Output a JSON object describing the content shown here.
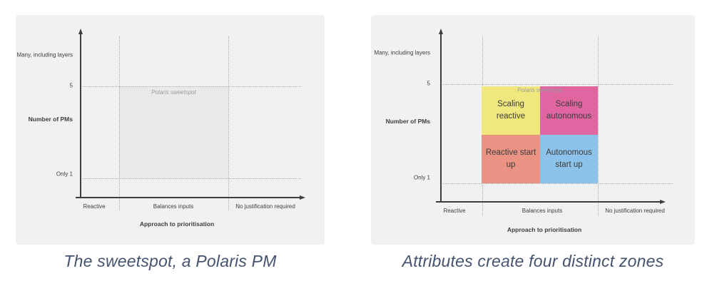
{
  "colors": {
    "page_background": "#ffffff",
    "panel_background": "#f1f1f1",
    "caption_text": "#44536e",
    "axis": "#3d3d3d",
    "dotted_line": "#ababab",
    "annotation_text": "#9b9b9b",
    "zone_text": "#3b3b3b",
    "sweetspot_fill": "#e9e9e9"
  },
  "figures": [
    {
      "caption": "The sweetspot, a Polaris PM",
      "chart": {
        "y_axis": {
          "title": "Number of PMs",
          "ticks": [
            "Many, including layers",
            "5",
            "Only 1"
          ]
        },
        "x_axis": {
          "title": "Approach to prioritisation",
          "ticks": [
            "Reactive",
            "Balances inputs",
            "No justification required"
          ]
        },
        "annotation": "Polaris sweetspot",
        "sweetspot_fill": "#e9e9e9"
      }
    },
    {
      "caption": "Attributes create four distinct zones",
      "chart": {
        "y_axis": {
          "title": "Number of PMs",
          "ticks": [
            "Many, including layers",
            "5",
            "Only 1"
          ]
        },
        "x_axis": {
          "title": "Approach to prioritisation",
          "ticks": [
            "Reactive",
            "Balances inputs",
            "No justification required"
          ]
        },
        "annotation": "Polaris sweetspot",
        "zones": [
          {
            "label": "Scaling reactive",
            "position": "top-left",
            "color": "#f0e87e"
          },
          {
            "label": "Scaling autonomous",
            "position": "top-right",
            "color": "#df66a0"
          },
          {
            "label": "Reactive start up",
            "position": "bottom-left",
            "color": "#ea9384"
          },
          {
            "label": "Autonomous start up",
            "position": "bottom-right",
            "color": "#8dc3ea"
          }
        ]
      }
    }
  ]
}
